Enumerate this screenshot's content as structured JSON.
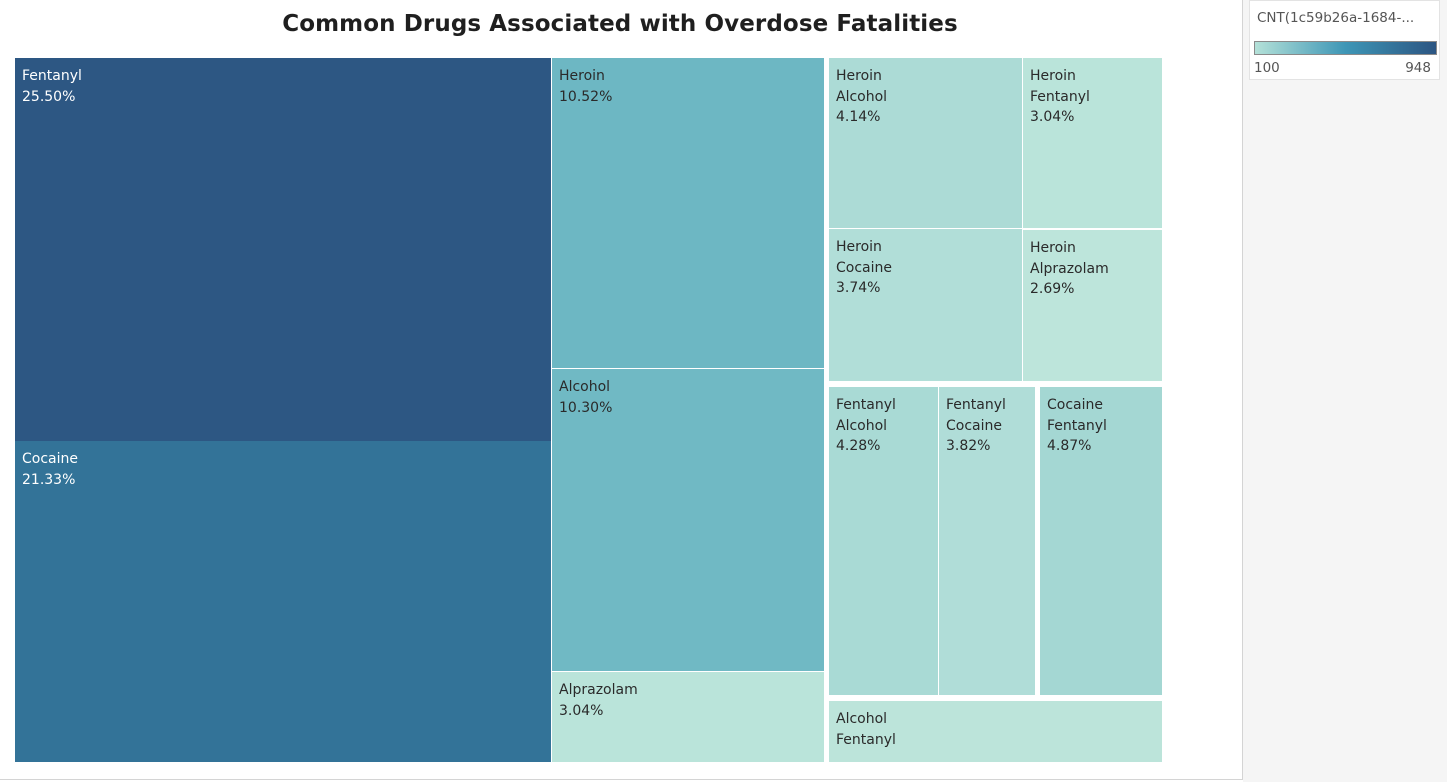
{
  "chart_data": {
    "type": "treemap",
    "title": "Common Drugs Associated with Overdose Fatalities",
    "color_legend": {
      "title": "CNT(1c59b26a-1684-...",
      "min": "100",
      "max": "948",
      "colors": [
        "#b4e1d8",
        "#3e96b6",
        "#2c5582"
      ]
    },
    "items": [
      {
        "drugs": [
          "Fentanyl"
        ],
        "label": "25.50%",
        "percent": 25.5,
        "color": "#2d5783",
        "text_color": "#ffffff"
      },
      {
        "drugs": [
          "Cocaine"
        ],
        "label": "21.33%",
        "percent": 21.33,
        "color": "#337398",
        "text_color": "#ffffff"
      },
      {
        "drugs": [
          "Heroin"
        ],
        "label": "10.52%",
        "percent": 10.52,
        "color": "#6db7c3",
        "text_color": "#2a2a2a"
      },
      {
        "drugs": [
          "Alcohol"
        ],
        "label": "10.30%",
        "percent": 10.3,
        "color": "#70b9c4",
        "text_color": "#2a2a2a"
      },
      {
        "drugs": [
          "Alprazolam"
        ],
        "label": "3.04%",
        "percent": 3.04,
        "color": "#bae4da",
        "text_color": "#2a2a2a"
      },
      {
        "drugs": [
          "Heroin",
          "Alcohol"
        ],
        "label": "4.14%",
        "percent": 4.14,
        "color": "#acdbd6",
        "text_color": "#2a2a2a"
      },
      {
        "drugs": [
          "Heroin",
          "Fentanyl"
        ],
        "label": "3.04%",
        "percent": 3.04,
        "color": "#bae4da",
        "text_color": "#2a2a2a"
      },
      {
        "drugs": [
          "Heroin",
          "Cocaine"
        ],
        "label": "3.74%",
        "percent": 3.74,
        "color": "#b1ded8",
        "text_color": "#2a2a2a"
      },
      {
        "drugs": [
          "Heroin",
          "Alprazolam"
        ],
        "label": "2.69%",
        "percent": 2.69,
        "color": "#bde5db",
        "text_color": "#2a2a2a"
      },
      {
        "drugs": [
          "Fentanyl",
          "Alcohol"
        ],
        "label": "4.28%",
        "percent": 4.28,
        "color": "#a9dad5",
        "text_color": "#2a2a2a"
      },
      {
        "drugs": [
          "Fentanyl",
          "Cocaine"
        ],
        "label": "3.82%",
        "percent": 3.82,
        "color": "#b0ddd8",
        "text_color": "#2a2a2a"
      },
      {
        "drugs": [
          "Cocaine",
          "Fentanyl"
        ],
        "label": "4.87%",
        "percent": 4.87,
        "color": "#a4d7d3",
        "text_color": "#2a2a2a"
      },
      {
        "drugs": [
          "Alcohol",
          "Fentanyl"
        ],
        "label": "",
        "percent": null,
        "color": "#bce4da",
        "text_color": "#2a2a2a"
      }
    ]
  }
}
